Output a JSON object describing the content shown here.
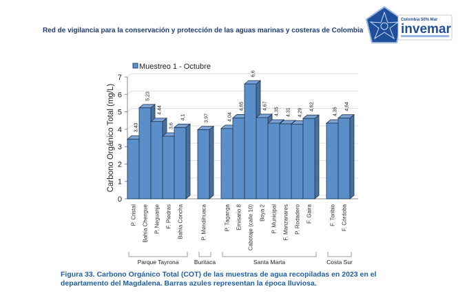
{
  "header": {
    "title": "Red de vigilancia para la conservación y protección de las aguas marinas y costeras de Colombia"
  },
  "logo": {
    "text": "invemar",
    "tagline": "Colombia 50% Mar"
  },
  "caption": {
    "text": "Figura 33.  Carbono Orgánico Total (COT) de las muestras de agua recopiladas en 2023 en el departamento del Magdalena. Barras azules representan la época lluviosa."
  },
  "chart_data": {
    "type": "bar",
    "title": "",
    "ylabel": "Carbono Orgánico Total (mg/L)",
    "xlabel": "",
    "ylim": [
      0,
      7
    ],
    "yticks": [
      0,
      1,
      2,
      3,
      4,
      5,
      6,
      7
    ],
    "grid": true,
    "legend": {
      "position": "top-left",
      "entries": [
        "Muestreo 1 - Octubre"
      ]
    },
    "series": [
      {
        "name": "Muestreo 1 - Octubre",
        "color": "#5b8fc9"
      }
    ],
    "categories": [
      {
        "label": "P. Cristal",
        "value": 3.43,
        "value_label": "3,43",
        "group": 0,
        "slot": 0
      },
      {
        "label": "Bahía Chengue",
        "value": 5.23,
        "value_label": "5,23",
        "group": 0,
        "slot": 1
      },
      {
        "label": "P. Neguanje",
        "value": 4.44,
        "value_label": "4,44",
        "group": 0,
        "slot": 2
      },
      {
        "label": "F. Piedras",
        "value": 3.6,
        "value_label": "3,6",
        "group": 0,
        "slot": 3
      },
      {
        "label": "Bahía Concha",
        "value": 4.1,
        "value_label": "4,1",
        "group": 0,
        "slot": 4
      },
      {
        "label": "P. Mendihuaca",
        "value": 3.97,
        "value_label": "3,97",
        "group": 1,
        "slot": 6
      },
      {
        "label": "P. Taganga",
        "value": 4.04,
        "value_label": "4,04",
        "group": 2,
        "slot": 8
      },
      {
        "label": "Emisario 8",
        "value": 4.65,
        "value_label": "4,65",
        "group": 2,
        "slot": 9
      },
      {
        "label": "Cabotaje (calle 10)",
        "value": 6.6,
        "value_label": "6,6",
        "group": 2,
        "slot": 10
      },
      {
        "label": "Boya 2",
        "value": 4.67,
        "value_label": "4,67",
        "group": 2,
        "slot": 11
      },
      {
        "label": "P. Municipal",
        "value": 4.35,
        "value_label": "4,35",
        "group": 2,
        "slot": 12
      },
      {
        "label": "F. Manzanares",
        "value": 4.31,
        "value_label": "4,31",
        "group": 2,
        "slot": 13
      },
      {
        "label": "P. Rodadero",
        "value": 4.29,
        "value_label": "4,29",
        "group": 2,
        "slot": 14
      },
      {
        "label": "F. Gaira",
        "value": 4.62,
        "value_label": "4,62",
        "group": 2,
        "slot": 15
      },
      {
        "label": "F. Toribio",
        "value": 4.35,
        "value_label": "4,35",
        "group": 3,
        "slot": 17
      },
      {
        "label": "F. Córdoba",
        "value": 4.64,
        "value_label": "4,64",
        "group": 3,
        "slot": 18
      }
    ],
    "groups": [
      "Parque Tayrona",
      "Buritaca",
      "Santa Marta",
      "Costa Sur"
    ]
  }
}
